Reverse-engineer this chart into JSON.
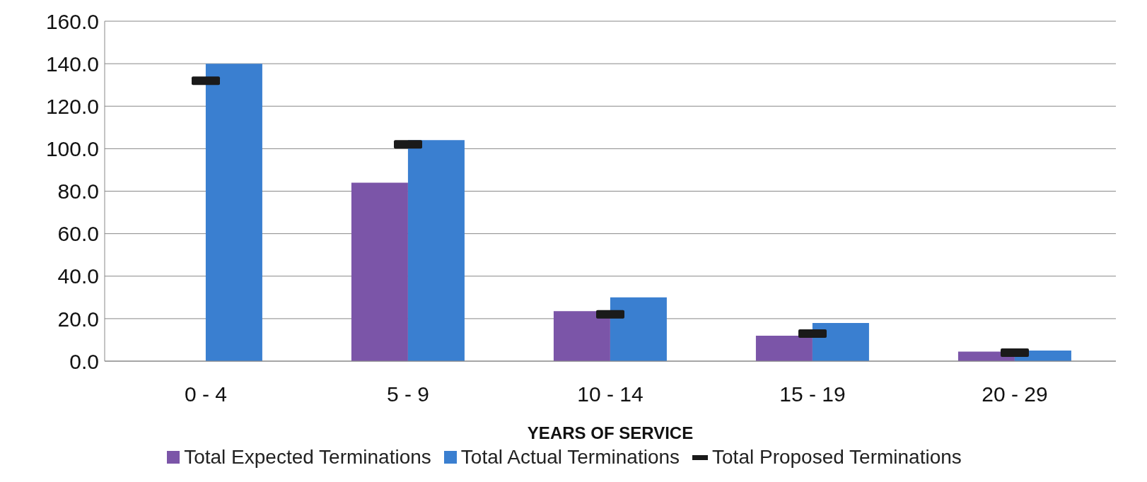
{
  "chart_data": {
    "type": "bar",
    "xlabel": "YEARS OF SERVICE",
    "categories": [
      "0 - 4",
      "5 - 9",
      "10 - 14",
      "15 - 19",
      "20 - 29"
    ],
    "series": [
      {
        "name": "Total Expected Terminations",
        "color": "#7b55a8",
        "values": [
          null,
          84,
          23.5,
          12,
          4.5
        ]
      },
      {
        "name": "Total Actual Terminations",
        "color": "#3a7fd0",
        "values": [
          140,
          104,
          30,
          18,
          5
        ]
      },
      {
        "name": "Total Proposed Terminations",
        "type": "scatter",
        "color": "#1a1a1a",
        "values": [
          132,
          102,
          22,
          13,
          4
        ]
      }
    ],
    "ylim": [
      0,
      160
    ],
    "yticks": [
      {
        "value": 0,
        "label": "0.0"
      },
      {
        "value": 20,
        "label": "20.0"
      },
      {
        "value": 40,
        "label": "40.0"
      },
      {
        "value": 60,
        "label": "60.0"
      },
      {
        "value": 80,
        "label": "80.0"
      },
      {
        "value": 100,
        "label": "100.0"
      },
      {
        "value": 120,
        "label": "120.0"
      },
      {
        "value": 140,
        "label": "140.0"
      },
      {
        "value": 160,
        "label": "160.0"
      }
    ],
    "grid": "y",
    "legend": "bottom"
  }
}
